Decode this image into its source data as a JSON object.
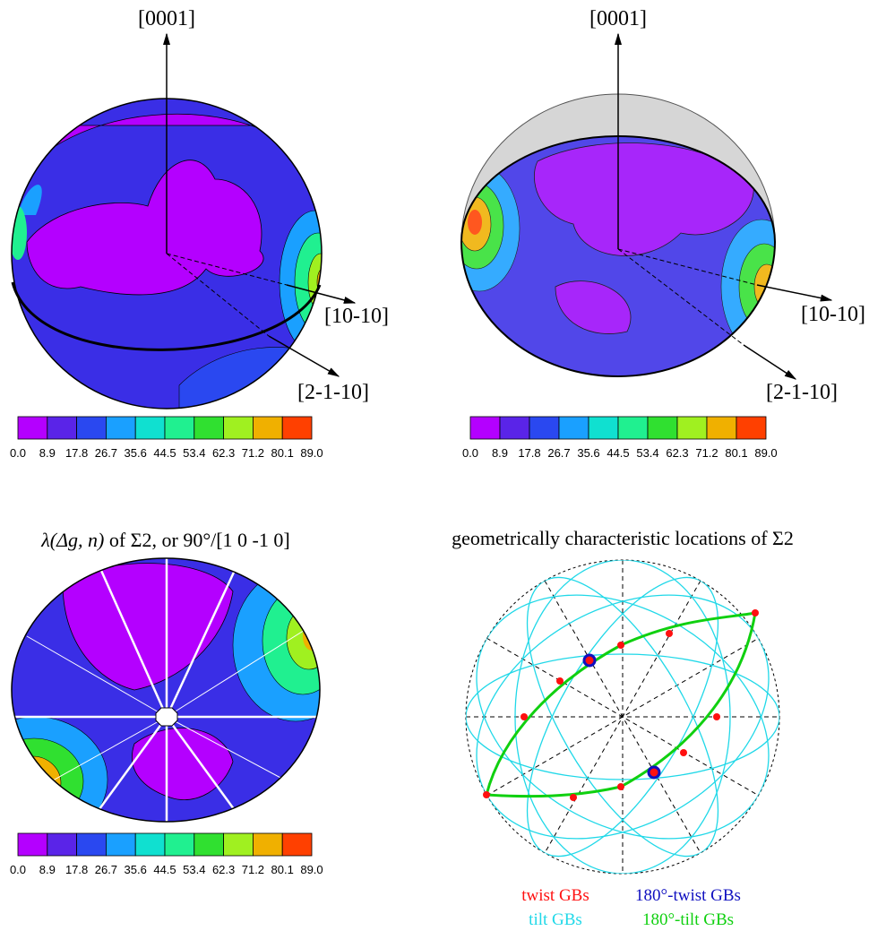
{
  "panels": [
    {
      "axis_labels": [
        "[0001]",
        "[10-10]",
        "[2-1-10]"
      ]
    },
    {
      "axis_labels": [
        "[0001]",
        "[10-10]",
        "[2-1-10]"
      ]
    },
    {
      "title_italic": "λ(Δg, n)",
      "title": " of Σ2, or 90°/[1 0 -1 0]"
    },
    {
      "title": "geometrically characteristic locations of Σ2",
      "legend": [
        {
          "label": "twist GBs",
          "color": "#ff1010"
        },
        {
          "label": "180°-twist GBs",
          "color": "#1010c0"
        },
        {
          "label": "tilt GBs",
          "color": "#20d8e8"
        },
        {
          "label": "180°-tilt GBs",
          "color": "#10d010"
        }
      ]
    }
  ],
  "colorbar": {
    "labels": [
      "0.0",
      "8.9",
      "17.8",
      "26.7",
      "35.6",
      "44.5",
      "53.4",
      "62.3",
      "71.2",
      "80.1",
      "89.0"
    ],
    "colors": [
      "#b400ff",
      "#5a24e8",
      "#2a48f0",
      "#1aa0ff",
      "#10e0d0",
      "#20f090",
      "#30e030",
      "#a0f020",
      "#f0b000",
      "#ff4000"
    ]
  }
}
